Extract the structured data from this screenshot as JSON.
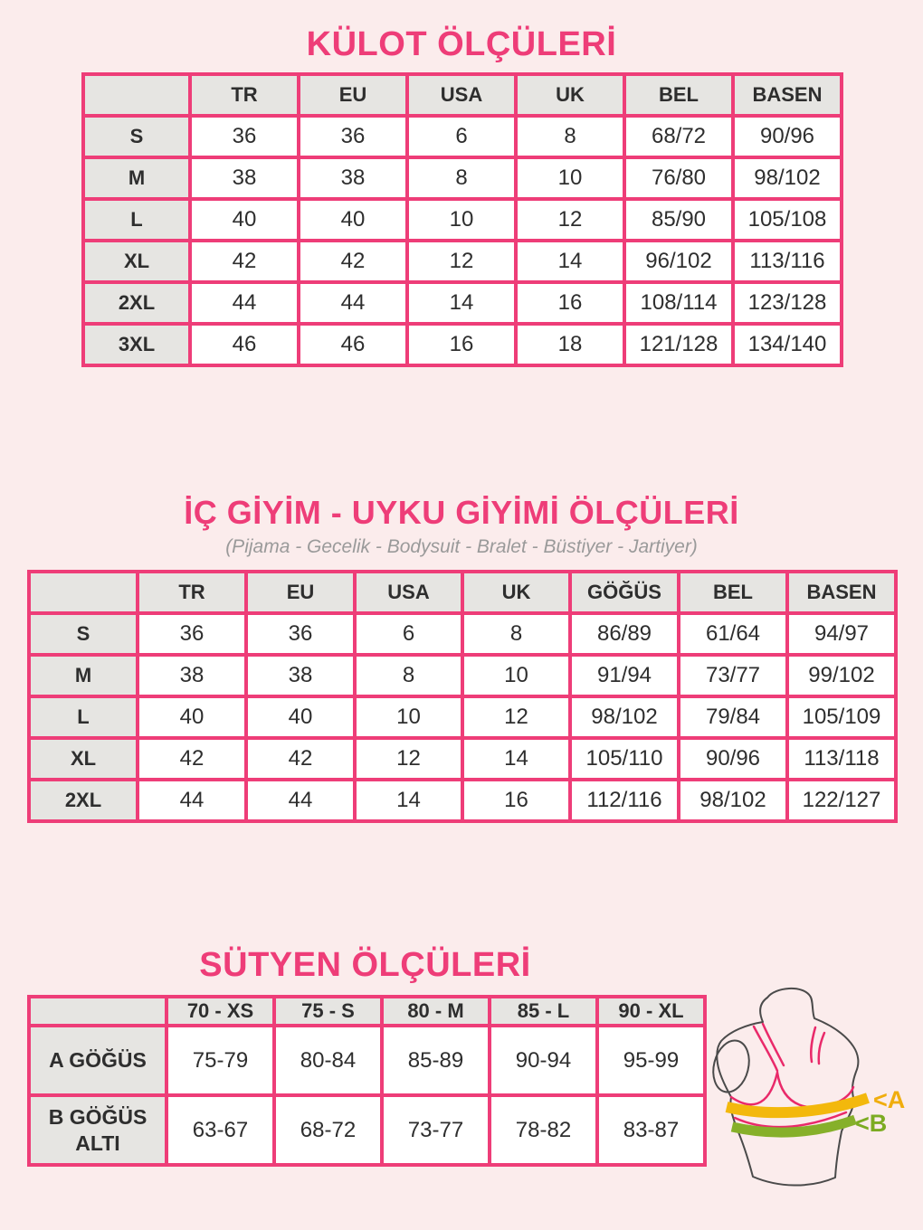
{
  "colors": {
    "background": "#fbecec",
    "accent_pink": "#ee3d78",
    "header_gray": "#e6e5e2",
    "text": "#2e2e2e",
    "subtitle_gray": "#9a9a9a",
    "band_a_yellow": "#f3b80c",
    "band_b_green": "#86b02a",
    "bra_pink": "#e92a6a",
    "torso_outline": "#4a4a4a"
  },
  "sections": {
    "kulot": {
      "title": "KÜLOT ÖLÇÜLERİ",
      "columns": [
        "",
        "TR",
        "EU",
        "USA",
        "UK",
        "BEL",
        "BASEN"
      ],
      "rows": [
        {
          "label": "S",
          "values": [
            "36",
            "36",
            "6",
            "8",
            "68/72",
            "90/96"
          ]
        },
        {
          "label": "M",
          "values": [
            "38",
            "38",
            "8",
            "10",
            "76/80",
            "98/102"
          ]
        },
        {
          "label": "L",
          "values": [
            "40",
            "40",
            "10",
            "12",
            "85/90",
            "105/108"
          ]
        },
        {
          "label": "XL",
          "values": [
            "42",
            "42",
            "12",
            "14",
            "96/102",
            "113/116"
          ]
        },
        {
          "label": "2XL",
          "values": [
            "44",
            "44",
            "14",
            "16",
            "108/114",
            "123/128"
          ]
        },
        {
          "label": "3XL",
          "values": [
            "46",
            "46",
            "16",
            "18",
            "121/128",
            "134/140"
          ]
        }
      ]
    },
    "icgiyim": {
      "title": "İÇ GİYİM - UYKU GİYİMİ ÖLÇÜLERİ",
      "subtitle": "(Pijama - Gecelik - Bodysuit - Bralet - Büstiyer - Jartiyer)",
      "columns": [
        "",
        "TR",
        "EU",
        "USA",
        "UK",
        "GÖĞÜS",
        "BEL",
        "BASEN"
      ],
      "rows": [
        {
          "label": "S",
          "values": [
            "36",
            "36",
            "6",
            "8",
            "86/89",
            "61/64",
            "94/97"
          ]
        },
        {
          "label": "M",
          "values": [
            "38",
            "38",
            "8",
            "10",
            "91/94",
            "73/77",
            "99/102"
          ]
        },
        {
          "label": "L",
          "values": [
            "40",
            "40",
            "10",
            "12",
            "98/102",
            "79/84",
            "105/109"
          ]
        },
        {
          "label": "XL",
          "values": [
            "42",
            "42",
            "12",
            "14",
            "105/110",
            "90/96",
            "113/118"
          ]
        },
        {
          "label": "2XL",
          "values": [
            "44",
            "44",
            "14",
            "16",
            "112/116",
            "98/102",
            "122/127"
          ]
        }
      ]
    },
    "sutyen": {
      "title": "SÜTYEN ÖLÇÜLERİ",
      "columns": [
        "",
        "70 - XS",
        "75 - S",
        "80 - M",
        "85 - L",
        "90 - XL"
      ],
      "rows": [
        {
          "label": "A GÖĞÜS",
          "values": [
            "75-79",
            "80-84",
            "85-89",
            "90-94",
            "95-99"
          ]
        },
        {
          "label": "B GÖĞÜS ALTI",
          "values": [
            "63-67",
            "68-72",
            "73-77",
            "78-82",
            "83-87"
          ]
        }
      ]
    }
  },
  "diagram": {
    "label_a": "<A",
    "label_b": "<B"
  }
}
